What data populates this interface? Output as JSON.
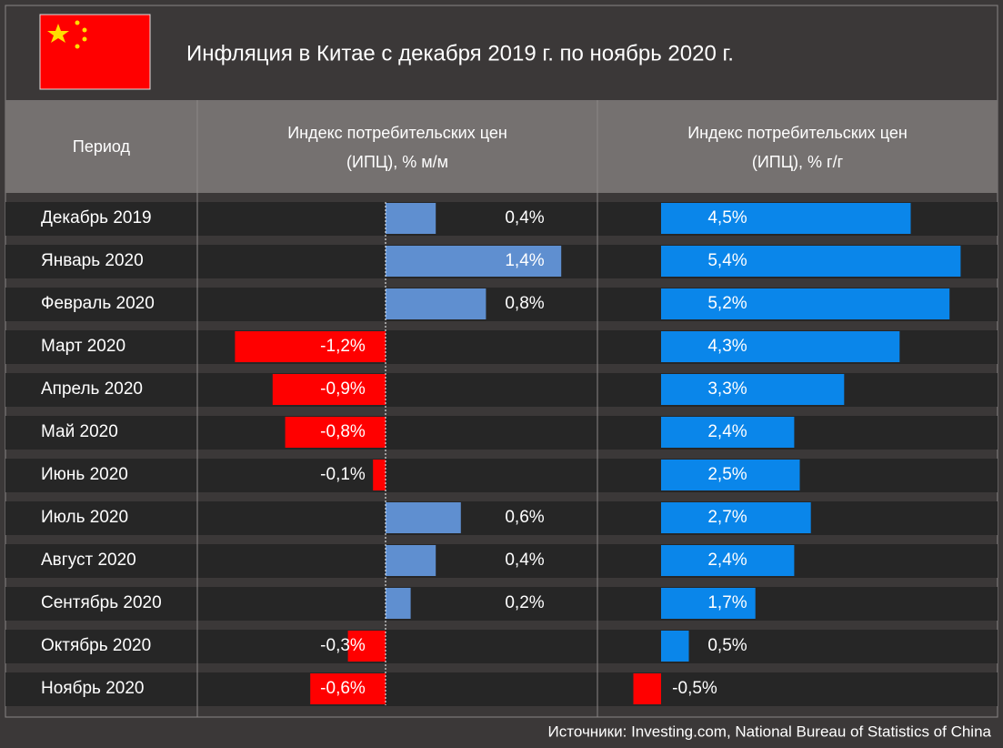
{
  "chart_data": {
    "type": "table-bar",
    "title": "Инфляция в Китае с декабря 2019 г. по ноябрь 2020 г.",
    "category_header": "Период",
    "categories": [
      "Декабрь 2019",
      "Январь 2020",
      "Февраль 2020",
      "Март 2020",
      "Апрель 2020",
      "Май 2020",
      "Июнь 2020",
      "Июль 2020",
      "Август 2020",
      "Сентябрь 2020",
      "Октябрь 2020",
      "Ноябрь 2020"
    ],
    "series": [
      {
        "name": "Индекс потребительских цен (ИПЦ), % м/м",
        "color": "#5f8fd0",
        "negative_color": "#ff0000",
        "values": [
          0.4,
          1.4,
          0.8,
          -1.2,
          -0.9,
          -0.8,
          -0.1,
          0.6,
          0.4,
          0.2,
          -0.3,
          -0.6
        ],
        "value_labels": [
          "0,4%",
          "1,4%",
          "0,8%",
          "-1,2%",
          "-0,9%",
          "-0,8%",
          "-0,1%",
          "0,6%",
          "0,4%",
          "0,2%",
          "-0,3%",
          "-0,6%"
        ]
      },
      {
        "name": "Индекс потребительских цен (ИПЦ), % г/г",
        "color": "#0a86ea",
        "negative_color": "#ff0000",
        "values": [
          4.5,
          5.4,
          5.2,
          4.3,
          3.3,
          2.4,
          2.5,
          2.7,
          2.4,
          1.7,
          0.5,
          -0.5
        ],
        "value_labels": [
          "4,5%",
          "5,4%",
          "5,2%",
          "4,3%",
          "3,3%",
          "2,4%",
          "2,5%",
          "2,7%",
          "2,4%",
          "1,7%",
          "0,5%",
          "-0,5%"
        ]
      }
    ],
    "source": "Источники: Investing.com, National Bureau of Statistics of China"
  }
}
